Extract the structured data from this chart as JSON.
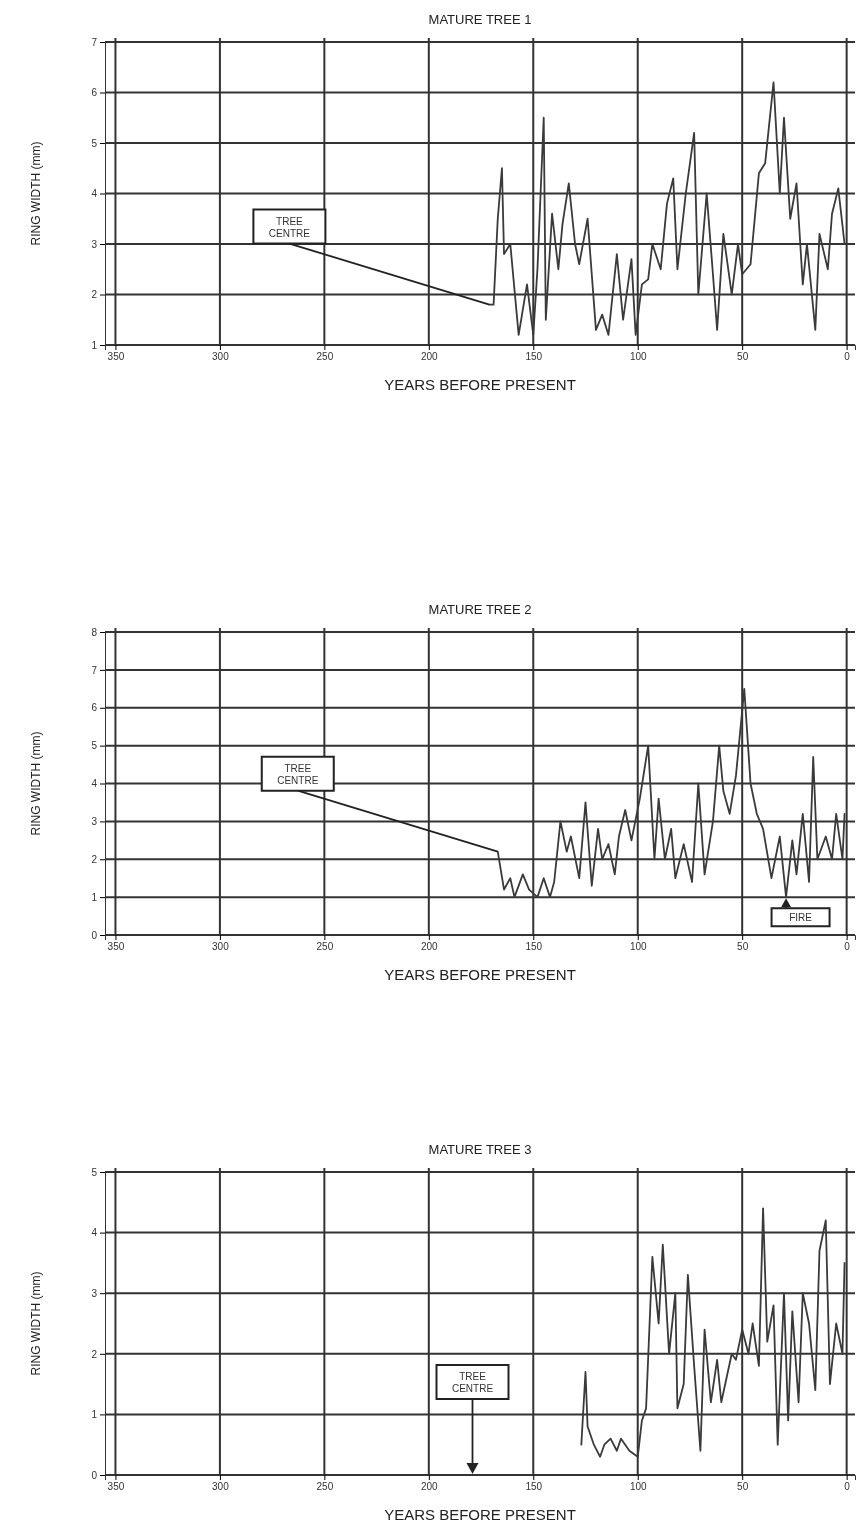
{
  "chart_data": [
    {
      "type": "line",
      "title": "MATURE TREE 1",
      "xlabel": "YEARS BEFORE PRESENT",
      "ylabel": "RING WIDTH (mm)",
      "xlim": [
        355,
        -4
      ],
      "ylim": [
        1,
        7
      ],
      "xticks": [
        350,
        300,
        250,
        200,
        150,
        100,
        50,
        0
      ],
      "yticks": [
        1,
        2,
        3,
        4,
        5,
        6,
        7
      ],
      "grid": true,
      "series": [
        {
          "color": "#3a3a3a",
          "x": [
            171,
            169,
            167,
            165,
            164,
            161,
            157,
            153,
            150,
            148,
            145,
            144,
            141,
            138,
            136,
            133,
            130,
            128,
            124,
            120,
            117,
            114,
            110,
            107,
            103,
            101,
            98,
            95,
            93,
            89,
            86,
            83,
            81,
            77,
            73,
            71,
            67,
            64,
            62,
            59,
            55,
            52,
            50,
            46,
            42,
            39,
            35,
            32,
            30,
            27,
            24,
            21,
            19,
            15,
            13,
            9,
            7,
            4,
            1
          ],
          "values": [
            1.8,
            1.8,
            3.5,
            4.5,
            2.8,
            3.0,
            1.2,
            2.2,
            1.2,
            2.5,
            5.5,
            1.5,
            3.6,
            2.5,
            3.4,
            4.2,
            3.0,
            2.6,
            3.5,
            1.3,
            1.6,
            1.2,
            2.8,
            1.5,
            2.7,
            1.2,
            2.2,
            2.3,
            3.0,
            2.5,
            3.8,
            4.3,
            2.5,
            4.0,
            5.2,
            2.0,
            4.0,
            2.4,
            1.3,
            3.2,
            2.0,
            3.0,
            2.4,
            2.6,
            4.4,
            4.6,
            6.2,
            4.0,
            5.5,
            3.5,
            4.2,
            2.2,
            3.0,
            1.3,
            3.2,
            2.5,
            3.6,
            4.1,
            3.0
          ]
        }
      ],
      "annotations": [
        {
          "text": "TREE CENTRE",
          "x": 171,
          "y": 1.8
        }
      ]
    },
    {
      "type": "line",
      "title": "MATURE TREE 2",
      "xlabel": "YEARS BEFORE PRESENT",
      "ylabel": "RING WIDTH (mm)",
      "xlim": [
        355,
        -4
      ],
      "ylim": [
        0,
        8
      ],
      "xticks": [
        350,
        300,
        250,
        200,
        150,
        100,
        50,
        0
      ],
      "yticks": [
        0,
        1,
        2,
        3,
        4,
        5,
        6,
        7,
        8
      ],
      "grid": true,
      "series": [
        {
          "color": "#3a3a3a",
          "x": [
            167,
            164,
            161,
            159,
            155,
            152,
            148,
            145,
            142,
            140,
            137,
            134,
            132,
            128,
            125,
            122,
            119,
            117,
            114,
            111,
            109,
            106,
            103,
            99,
            95,
            92,
            90,
            87,
            84,
            82,
            78,
            74,
            71,
            68,
            64,
            61,
            59,
            56,
            53,
            49,
            46,
            43,
            40,
            36,
            32,
            29,
            26,
            24,
            21,
            18,
            16,
            14,
            10,
            7,
            5,
            2,
            1
          ],
          "values": [
            2.2,
            1.2,
            1.5,
            1.0,
            1.6,
            1.2,
            1.0,
            1.5,
            1.0,
            1.4,
            3.0,
            2.2,
            2.6,
            1.5,
            3.5,
            1.3,
            2.8,
            2.0,
            2.4,
            1.6,
            2.6,
            3.3,
            2.5,
            3.6,
            5.0,
            2.0,
            3.6,
            2.0,
            2.8,
            1.5,
            2.4,
            1.4,
            4.0,
            1.6,
            3.0,
            5.0,
            3.8,
            3.2,
            4.2,
            6.5,
            4.0,
            3.2,
            2.8,
            1.5,
            2.6,
            1.0,
            2.5,
            1.6,
            3.2,
            1.4,
            4.7,
            2.0,
            2.6,
            2.0,
            3.2,
            2.0,
            3.2
          ]
        }
      ],
      "annotations": [
        {
          "text": "TREE CENTRE",
          "x": 167,
          "y": 2.2
        },
        {
          "text": "FIRE",
          "x": 29,
          "y": 1.0
        }
      ]
    },
    {
      "type": "line",
      "title": "MATURE TREE 3",
      "xlabel": "YEARS BEFORE PRESENT",
      "ylabel": "RING WIDTH (mm)",
      "xlim": [
        355,
        -4
      ],
      "ylim": [
        0,
        5
      ],
      "xticks": [
        350,
        300,
        250,
        200,
        150,
        100,
        50,
        0
      ],
      "yticks": [
        0,
        1,
        2,
        3,
        4,
        5
      ],
      "grid": true,
      "series": [
        {
          "color": "#3a3a3a",
          "x": [
            127,
            125,
            124,
            121,
            118,
            116,
            113,
            110,
            108,
            104,
            100,
            98,
            96,
            93,
            90,
            88,
            85,
            82,
            81,
            78,
            76,
            73,
            70,
            68,
            65,
            62,
            60,
            55,
            53,
            50,
            47,
            45,
            42,
            40,
            38,
            35,
            33,
            30,
            28,
            26,
            23,
            21,
            18,
            15,
            13,
            10,
            8,
            5,
            2,
            1
          ],
          "values": [
            0.5,
            1.7,
            0.8,
            0.5,
            0.3,
            0.5,
            0.6,
            0.4,
            0.6,
            0.4,
            0.3,
            0.9,
            1.1,
            3.6,
            2.5,
            3.8,
            2.0,
            3.0,
            1.1,
            1.5,
            3.3,
            1.8,
            0.4,
            2.4,
            1.2,
            1.9,
            1.2,
            2.0,
            1.9,
            2.4,
            2.0,
            2.5,
            1.8,
            4.4,
            2.2,
            2.8,
            0.5,
            3.0,
            0.9,
            2.7,
            1.2,
            3.0,
            2.5,
            1.4,
            3.7,
            4.2,
            1.5,
            2.5,
            2.0,
            3.5
          ]
        }
      ],
      "annotations": [
        "TREE CENTRE"
      ]
    }
  ]
}
